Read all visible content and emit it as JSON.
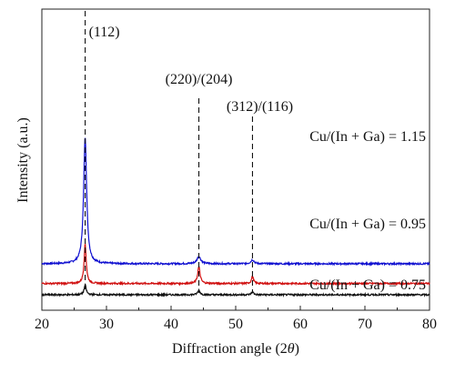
{
  "chart_data": {
    "type": "line",
    "xlabel": "Diffraction angle (2θ)",
    "xlabel_plain": "Diffraction angle (2",
    "xlabel_symbol": "θ",
    "xlabel_close": ")",
    "ylabel": "Intensity (a.u.)",
    "xlim": [
      20,
      80
    ],
    "xticks": [
      20,
      30,
      40,
      50,
      60,
      70,
      80
    ],
    "grid": false,
    "peaks": [
      {
        "position": 26.7,
        "label": "(112)"
      },
      {
        "position": 44.3,
        "label": "(220)/(204)"
      },
      {
        "position": 52.6,
        "label": "(312)/(116)"
      }
    ],
    "series": [
      {
        "name": "Cu/(In + Ga) = 1.15",
        "color": "#1010d0",
        "baseline": 0.55,
        "peak_heights": [
          2.25,
          0.13,
          0.07
        ],
        "widths": [
          0.28,
          0.35,
          0.3
        ]
      },
      {
        "name": "Cu/(In + Ga) = 0.95",
        "color": "#d01010",
        "baseline": 0.2,
        "peak_heights": [
          0.7,
          0.3,
          0.12
        ],
        "widths": [
          0.2,
          0.22,
          0.2
        ]
      },
      {
        "name": "Cu/(In + Ga) = 0.75",
        "color": "#111111",
        "baseline": 0.0,
        "peak_heights": [
          0.17,
          0.08,
          0.05
        ],
        "widths": [
          0.2,
          0.22,
          0.2
        ]
      }
    ]
  }
}
